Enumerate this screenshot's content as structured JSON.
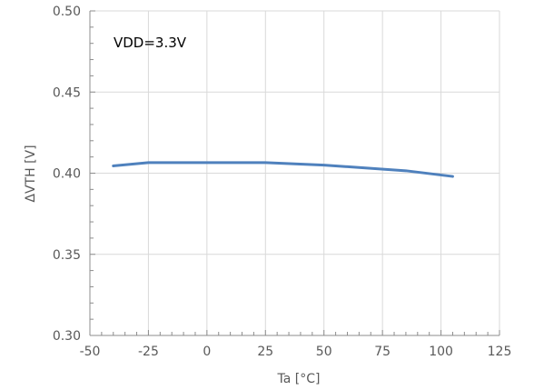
{
  "chart_data": {
    "type": "line",
    "title": "",
    "xlabel": "Ta [°C]",
    "ylabel": "ΔVTH [V]",
    "xlim": [
      -50,
      125
    ],
    "ylim": [
      0.3,
      0.5
    ],
    "x_ticks": [
      -50,
      -25,
      0,
      25,
      50,
      75,
      100,
      125
    ],
    "y_ticks": [
      0.3,
      0.35,
      0.4,
      0.45,
      0.5
    ],
    "x_tick_labels": [
      "-50",
      "-25",
      "0",
      "25",
      "50",
      "75",
      "100",
      "125"
    ],
    "y_tick_labels": [
      "0.30",
      "0.35",
      "0.40",
      "0.45",
      "0.50"
    ],
    "x_minor_step": 5,
    "y_minor_step": 0.01,
    "grid": true,
    "legend": "none",
    "annotation": "VDD=3.3V",
    "series": [
      {
        "color": "#4f81bd",
        "x": [
          -40,
          -25,
          0,
          25,
          50,
          85,
          105
        ],
        "y": [
          0.4045,
          0.4065,
          0.4065,
          0.4065,
          0.405,
          0.4015,
          0.398
        ]
      }
    ]
  },
  "colors": {
    "grid": "#d9d9d9",
    "axis": "#8c8c8c",
    "text": "#595959"
  }
}
